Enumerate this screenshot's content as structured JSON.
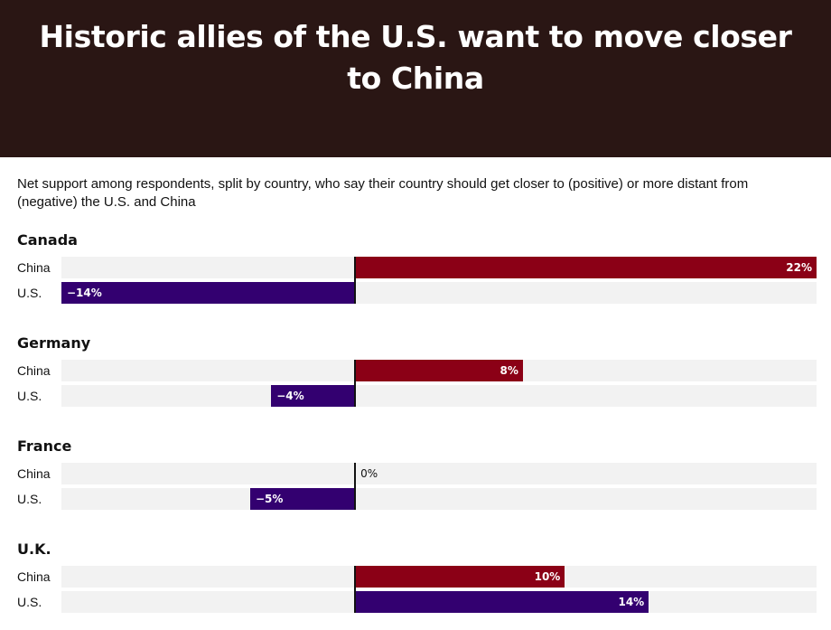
{
  "title": "Historic allies of the U.S. want to move closer to China",
  "subtitle": "Net support among respondents, split by country, who say their country should get closer to (positive) or more distant from (negative) the U.S. and China",
  "colors": {
    "header_bg": "#2a1614",
    "china": "#8b0016",
    "us": "#330070",
    "track": "#f2f2f2"
  },
  "chart_data": {
    "type": "bar",
    "orientation": "horizontal",
    "xlim": [
      -14,
      22
    ],
    "unit": "%",
    "groups": [
      {
        "name": "Canada",
        "rows": [
          {
            "label": "China",
            "value": 22,
            "value_label": "22%"
          },
          {
            "label": "U.S.",
            "value": -14,
            "value_label": "−14%"
          }
        ]
      },
      {
        "name": "Germany",
        "rows": [
          {
            "label": "China",
            "value": 8,
            "value_label": "8%"
          },
          {
            "label": "U.S.",
            "value": -4,
            "value_label": "−4%"
          }
        ]
      },
      {
        "name": "France",
        "rows": [
          {
            "label": "China",
            "value": 0,
            "value_label": "0%"
          },
          {
            "label": "U.S.",
            "value": -5,
            "value_label": "−5%"
          }
        ]
      },
      {
        "name": "U.K.",
        "rows": [
          {
            "label": "China",
            "value": 10,
            "value_label": "10%"
          },
          {
            "label": "U.S.",
            "value": 14,
            "value_label": "14%"
          }
        ]
      }
    ]
  }
}
